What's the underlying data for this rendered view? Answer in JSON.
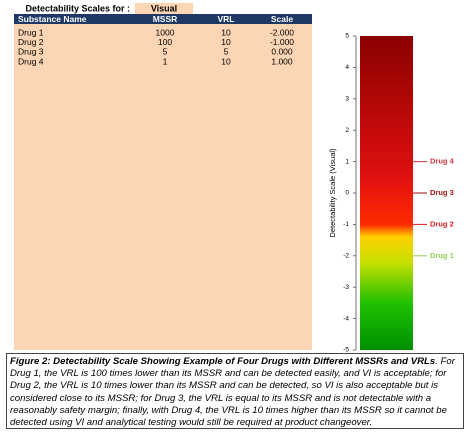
{
  "header": {
    "label": "Detectability Scales for :",
    "mode": "Visual"
  },
  "table": {
    "columns": [
      "Substance Name",
      "MSSR",
      "VRL",
      "Scale"
    ],
    "rows": [
      [
        "Drug 1",
        "1000",
        "10",
        "-2.000"
      ],
      [
        "Drug 2",
        "100",
        "10",
        "-1.000"
      ],
      [
        "Drug 3",
        "5",
        "5",
        "0.000"
      ],
      [
        "Drug 4",
        "1",
        "10",
        "1.000"
      ]
    ]
  },
  "scale": {
    "axis_label": "Detectability Scale (Visual)",
    "ylim": [
      -5,
      5
    ],
    "yticks": [
      5,
      4,
      3,
      2,
      1,
      0,
      -1,
      -2,
      -3,
      -4,
      -5
    ],
    "markers": [
      {
        "label": "Drug 4",
        "value": 1,
        "color": "#d0343c"
      },
      {
        "label": "Drug 3",
        "value": 0,
        "color": "#a01010"
      },
      {
        "label": "Drug 2",
        "value": -1,
        "color": "#e02020"
      },
      {
        "label": "Drug 1",
        "value": -2,
        "color": "#92d050"
      }
    ]
  },
  "caption": {
    "title": "Figure 2: Detectability Scale Showing Example of Four Drugs with Different MSSRs and VRLs",
    "body": ". For Drug 1, the VRL is 100 times lower than its MSSR and can be detected easily, and VI is acceptable; for Drug 2, the VRL is 10 times lower than its MSSR and can be detected, so VI is also acceptable but is considered close to its MSSR; for Drug 3, the VRL is equal to its MSSR and is not detectable with a reasonably safety margin; finally, with Drug 4, the VRL is 10 times higher than its MSSR so it cannot be detected using VI and analytical testing would still be required at product changeover."
  }
}
